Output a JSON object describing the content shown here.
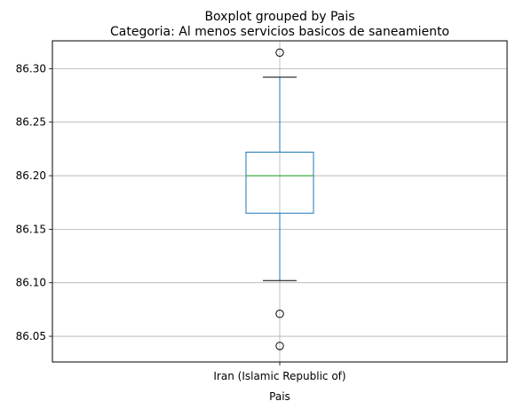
{
  "chart_data": {
    "type": "boxplot",
    "suptitle": "Boxplot grouped by Pais",
    "title": "Categoria: Al menos servicios basicos de saneamiento",
    "xlabel": "Pais",
    "ylabel": "",
    "categories": [
      "Iran (Islamic Republic of)"
    ],
    "boxes": [
      {
        "category": "Iran (Islamic Republic of)",
        "whisker_low": 86.102,
        "q1": 86.165,
        "median": 86.2,
        "q3": 86.222,
        "whisker_high": 86.292,
        "outliers": [
          86.315,
          86.071,
          86.041
        ]
      }
    ],
    "ylim": [
      86.026,
      86.326
    ],
    "yticks": [
      86.05,
      86.1,
      86.15,
      86.2,
      86.25,
      86.3
    ],
    "ytick_labels": [
      "86.05",
      "86.10",
      "86.15",
      "86.20",
      "86.25",
      "86.30"
    ],
    "grid": true,
    "colors": {
      "box": "#1f77b4",
      "median": "#2ca02c",
      "whisker_cap": "#000000",
      "outlier": "#000000",
      "grid": "#b0b0b0"
    }
  }
}
